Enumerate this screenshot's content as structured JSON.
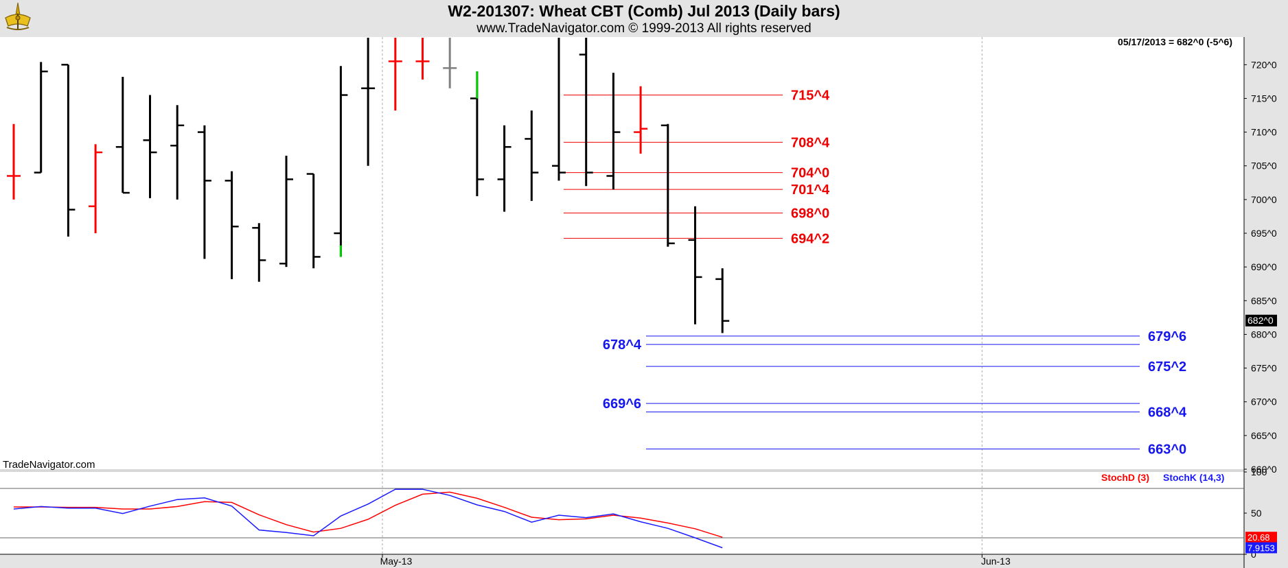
{
  "header": {
    "title": "W2-201307:  Wheat CBT (Comb) Jul 2013  (Daily bars)",
    "copyright": "www.TradeNavigator.com © 1999-2013 All rights reserved"
  },
  "colors": {
    "up_bar": "#ff0000",
    "normal_bar": "#000000",
    "gray_bar": "#808080",
    "green_mark": "#00cc00",
    "resistance": "#ee0000",
    "support": "#1515ee",
    "stoch_d": "#ff0000",
    "stoch_k": "#1a1aff"
  },
  "chart_data": [
    {
      "type": "ohlc",
      "title": "W2-201307:  Wheat CBT (Comb) Jul 2013  (Daily bars)",
      "watermark": "TradeNavigator.com",
      "info": "05/17/2013 = 682^0 (-5^6)",
      "last_price_label": "682^0",
      "ylim": [
        660,
        724
      ],
      "y_ticks": [
        {
          "value": 660,
          "label": "660^0"
        },
        {
          "value": 665,
          "label": "665^0"
        },
        {
          "value": 670,
          "label": "670^0"
        },
        {
          "value": 675,
          "label": "675^0"
        },
        {
          "value": 680,
          "label": "680^0"
        },
        {
          "value": 685,
          "label": "685^0"
        },
        {
          "value": 690,
          "label": "690^0"
        },
        {
          "value": 695,
          "label": "695^0"
        },
        {
          "value": 700,
          "label": "700^0"
        },
        {
          "value": 705,
          "label": "705^0"
        },
        {
          "value": 710,
          "label": "710^0"
        },
        {
          "value": 715,
          "label": "715^0"
        },
        {
          "value": 720,
          "label": "720^0"
        }
      ],
      "x_labels": [
        {
          "index": 13.5,
          "label": "May-13"
        },
        {
          "index": 35.5,
          "label": "Jun-13"
        }
      ],
      "bars": [
        {
          "i": 0,
          "o": 703.5,
          "h": 711.2,
          "l": 700.0,
          "c": 703.5,
          "color": "up"
        },
        {
          "i": 1,
          "o": 704.0,
          "h": 720.4,
          "l": 704.0,
          "c": 719.0,
          "color": "normal"
        },
        {
          "i": 2,
          "o": 720.0,
          "h": 720.0,
          "l": 694.5,
          "c": 698.5,
          "color": "normal"
        },
        {
          "i": 3,
          "o": 699.0,
          "h": 708.2,
          "l": 695.0,
          "c": 707.0,
          "color": "up"
        },
        {
          "i": 4,
          "o": 707.8,
          "h": 718.2,
          "l": 701.0,
          "c": 701.0,
          "color": "normal"
        },
        {
          "i": 5,
          "o": 708.8,
          "h": 715.5,
          "l": 700.2,
          "c": 707.0,
          "color": "normal"
        },
        {
          "i": 6,
          "o": 708.0,
          "h": 714.0,
          "l": 700.0,
          "c": 711.0,
          "color": "normal"
        },
        {
          "i": 7,
          "o": 710.0,
          "h": 711.0,
          "l": 691.2,
          "c": 702.8,
          "color": "normal"
        },
        {
          "i": 8,
          "o": 702.8,
          "h": 704.2,
          "l": 688.2,
          "c": 696.0,
          "color": "normal"
        },
        {
          "i": 9,
          "o": 695.8,
          "h": 696.5,
          "l": 687.8,
          "c": 691.0,
          "color": "normal"
        },
        {
          "i": 10,
          "o": 690.5,
          "h": 706.5,
          "l": 690.0,
          "c": 703.0,
          "color": "normal"
        },
        {
          "i": 11,
          "o": 703.8,
          "h": 703.8,
          "l": 689.8,
          "c": 691.5,
          "color": "normal"
        },
        {
          "i": 12,
          "o": 695.0,
          "h": 719.8,
          "l": 691.5,
          "c": 715.5,
          "color": "normal"
        },
        {
          "i": 13,
          "o": 716.5,
          "h": 724.0,
          "l": 705.0,
          "c": 716.5,
          "color": "normal"
        },
        {
          "i": 14,
          "o": 720.5,
          "h": 724.0,
          "l": 713.2,
          "c": 720.5,
          "color": "up"
        },
        {
          "i": 15,
          "o": 720.5,
          "h": 724.0,
          "l": 717.8,
          "c": 720.5,
          "color": "up"
        },
        {
          "i": 16,
          "o": 719.5,
          "h": 724.0,
          "l": 716.5,
          "c": 719.5,
          "color": "gray"
        },
        {
          "i": 17,
          "o": 715.0,
          "h": 719.0,
          "l": 700.5,
          "c": 703.0,
          "color": "normal"
        },
        {
          "i": 18,
          "o": 703.0,
          "h": 711.0,
          "l": 698.2,
          "c": 707.8,
          "color": "normal"
        },
        {
          "i": 19,
          "o": 709.0,
          "h": 713.2,
          "l": 699.8,
          "c": 704.0,
          "color": "normal"
        },
        {
          "i": 20,
          "o": 705.0,
          "h": 724.0,
          "l": 702.8,
          "c": 704.0,
          "color": "normal"
        },
        {
          "i": 21,
          "o": 721.5,
          "h": 724.0,
          "l": 702.0,
          "c": 704.0,
          "color": "normal"
        },
        {
          "i": 22,
          "o": 703.5,
          "h": 718.8,
          "l": 701.5,
          "c": 710.0,
          "color": "normal"
        },
        {
          "i": 23,
          "o": 710.0,
          "h": 716.8,
          "l": 706.8,
          "c": 710.5,
          "color": "up"
        },
        {
          "i": 24,
          "o": 711.0,
          "h": 711.2,
          "l": 693.0,
          "c": 693.5,
          "color": "normal"
        },
        {
          "i": 25,
          "o": 694.0,
          "h": 699.0,
          "l": 681.5,
          "c": 688.5,
          "color": "normal"
        },
        {
          "i": 26,
          "o": 688.2,
          "h": 689.8,
          "l": 680.2,
          "c": 682.0,
          "color": "normal"
        }
      ],
      "green_marks": [
        {
          "i": 12,
          "from": 691.5,
          "to": 693.2
        },
        {
          "i": 17,
          "from": 715.0,
          "to": 719.0
        }
      ],
      "resistance_levels": [
        {
          "label": "715^4",
          "value": 715.5
        },
        {
          "label": "708^4",
          "value": 708.5
        },
        {
          "label": "704^0",
          "value": 704.0
        },
        {
          "label": "701^4",
          "value": 701.5
        },
        {
          "label": "698^0",
          "value": 698.0
        },
        {
          "label": "694^2",
          "value": 694.25
        }
      ],
      "support_levels": [
        {
          "label": "679^6",
          "value": 679.75,
          "label_side": "right"
        },
        {
          "label": "678^4",
          "value": 678.5,
          "label_side": "left"
        },
        {
          "label": "675^2",
          "value": 675.25,
          "label_side": "right"
        },
        {
          "label": "669^6",
          "value": 669.75,
          "label_side": "left"
        },
        {
          "label": "668^4",
          "value": 668.5,
          "label_side": "right"
        },
        {
          "label": "663^0",
          "value": 663.0,
          "label_side": "right"
        }
      ]
    },
    {
      "type": "line",
      "title": "",
      "ylim": [
        0,
        100
      ],
      "y_ticks": [
        {
          "value": 100,
          "label": "100"
        },
        {
          "value": 50,
          "label": "50"
        },
        {
          "value": 0,
          "label": "0"
        }
      ],
      "reference_lines": [
        80,
        20
      ],
      "legend": [
        "StochD (3)",
        "StochK (14,3)"
      ],
      "last_values": {
        "d": "20.68",
        "k": "7.9153"
      },
      "series": [
        {
          "name": "StochD (3)",
          "color": "d",
          "values": [
            57.5,
            57.5,
            57.0,
            57.0,
            55.0,
            55.0,
            58.0,
            64.0,
            63.0,
            48.0,
            36.0,
            27.0,
            31.5,
            42.5,
            59.5,
            73.0,
            75.5,
            68.0,
            57.0,
            45.0,
            42.0,
            43.0,
            47.5,
            44.0,
            38.0,
            31.0,
            20.68
          ]
        },
        {
          "name": "StochK (14,3)",
          "color": "k",
          "values": [
            55.0,
            58.0,
            56.0,
            56.0,
            49.5,
            58.5,
            66.5,
            68.5,
            58.5,
            29.5,
            26.5,
            22.5,
            46.5,
            61.0,
            79.0,
            79.0,
            71.5,
            60.0,
            52.0,
            39.0,
            47.5,
            44.5,
            49.0,
            39.5,
            31.5,
            20.0,
            7.9153
          ]
        }
      ]
    }
  ]
}
